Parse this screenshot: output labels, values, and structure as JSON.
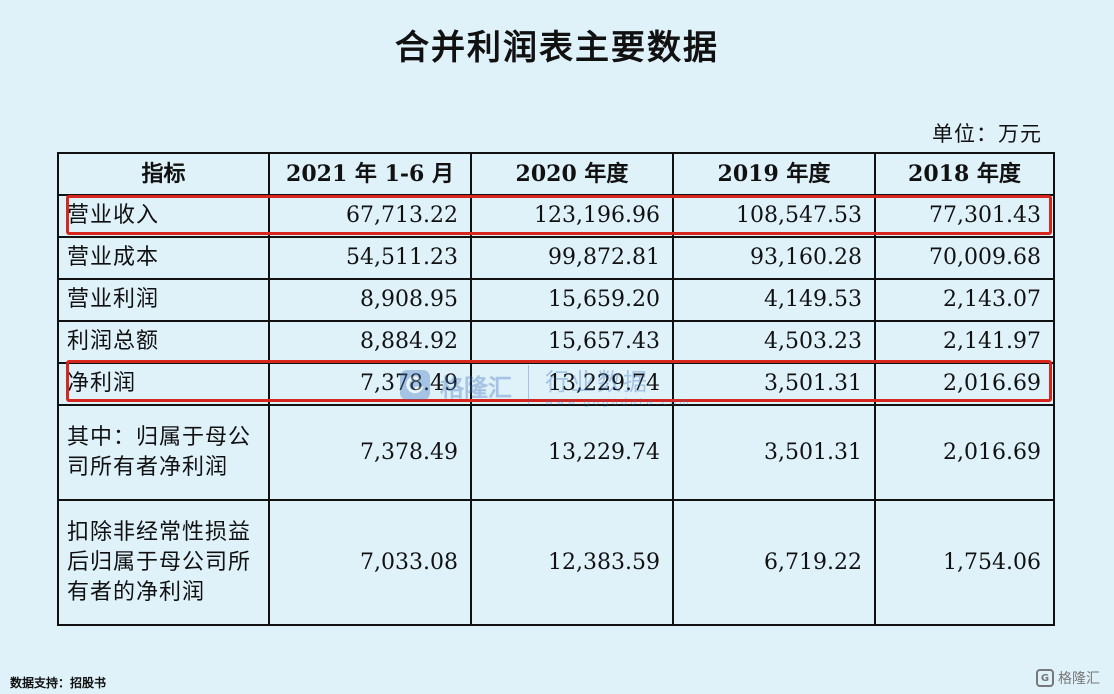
{
  "title": "合并利润表主要数据",
  "unit": "单位：万元",
  "table": {
    "headers": [
      "指标",
      "2021 年 1-6 月",
      "2020 年度",
      "2019 年度",
      "2018 年度"
    ],
    "rows": [
      {
        "label": "营业收入",
        "values": [
          "67,713.22",
          "123,196.96",
          "108,547.53",
          "77,301.43"
        ],
        "highlighted": true
      },
      {
        "label": "营业成本",
        "values": [
          "54,511.23",
          "99,872.81",
          "93,160.28",
          "70,009.68"
        ]
      },
      {
        "label": "营业利润",
        "values": [
          "8,908.95",
          "15,659.20",
          "4,149.53",
          "2,143.07"
        ]
      },
      {
        "label": "利润总额",
        "values": [
          "8,884.92",
          "15,657.43",
          "4,503.23",
          "2,141.97"
        ]
      },
      {
        "label": "净利润",
        "values": [
          "7,378.49",
          "13,229.74",
          "3,501.31",
          "2,016.69"
        ],
        "highlighted": true
      },
      {
        "label": "其中：归属于母公司所有者净利润",
        "values": [
          "7,378.49",
          "13,229.74",
          "3,501.31",
          "2,016.69"
        ]
      },
      {
        "label": "扣除非经常性损益后归属于母公司所有者的净利润",
        "values": [
          "7,033.08",
          "12,383.59",
          "6,719.22",
          "1,754.06"
        ]
      }
    ]
  },
  "highlight_color": "#d7261e",
  "watermark": {
    "brand": "格隆汇",
    "name": "行业数据",
    "url": "www.gogudata.com",
    "icon": "gelonghui-logo-icon"
  },
  "source_note": "数据支持：招股书",
  "corner_logo": {
    "brand": "格隆汇",
    "icon": "gelonghui-mark-icon",
    "mark": "G"
  }
}
